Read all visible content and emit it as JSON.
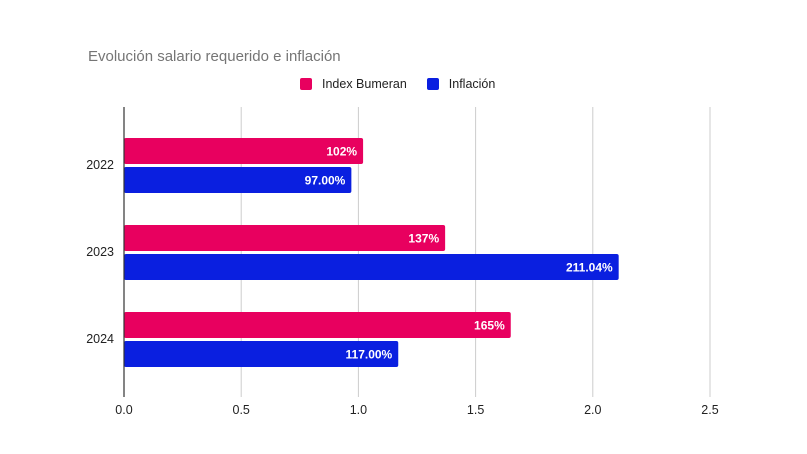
{
  "chart_data": {
    "type": "bar",
    "orientation": "horizontal",
    "title": "Evolución salario requerido e inflación",
    "categories": [
      "2022",
      "2023",
      "2024"
    ],
    "series": [
      {
        "name": "Index Bumeran",
        "color": "#e8005f",
        "values": [
          1.02,
          1.37,
          1.65
        ],
        "labels": [
          "102%",
          "137%",
          "165%"
        ]
      },
      {
        "name": "Inflación",
        "color": "#0a1fe0",
        "values": [
          0.97,
          2.1104,
          1.17
        ],
        "labels": [
          "97.00%",
          "211.04%",
          "117.00%"
        ]
      }
    ],
    "xlim": [
      0,
      2.7
    ],
    "xticks": [
      "0.0",
      "0.5",
      "1.0",
      "1.5",
      "2.0",
      "2.5"
    ],
    "xtick_values": [
      0,
      0.5,
      1.0,
      1.5,
      2.0,
      2.5
    ],
    "grid": true,
    "legend": "top-center",
    "xlabel": "",
    "ylabel": ""
  }
}
